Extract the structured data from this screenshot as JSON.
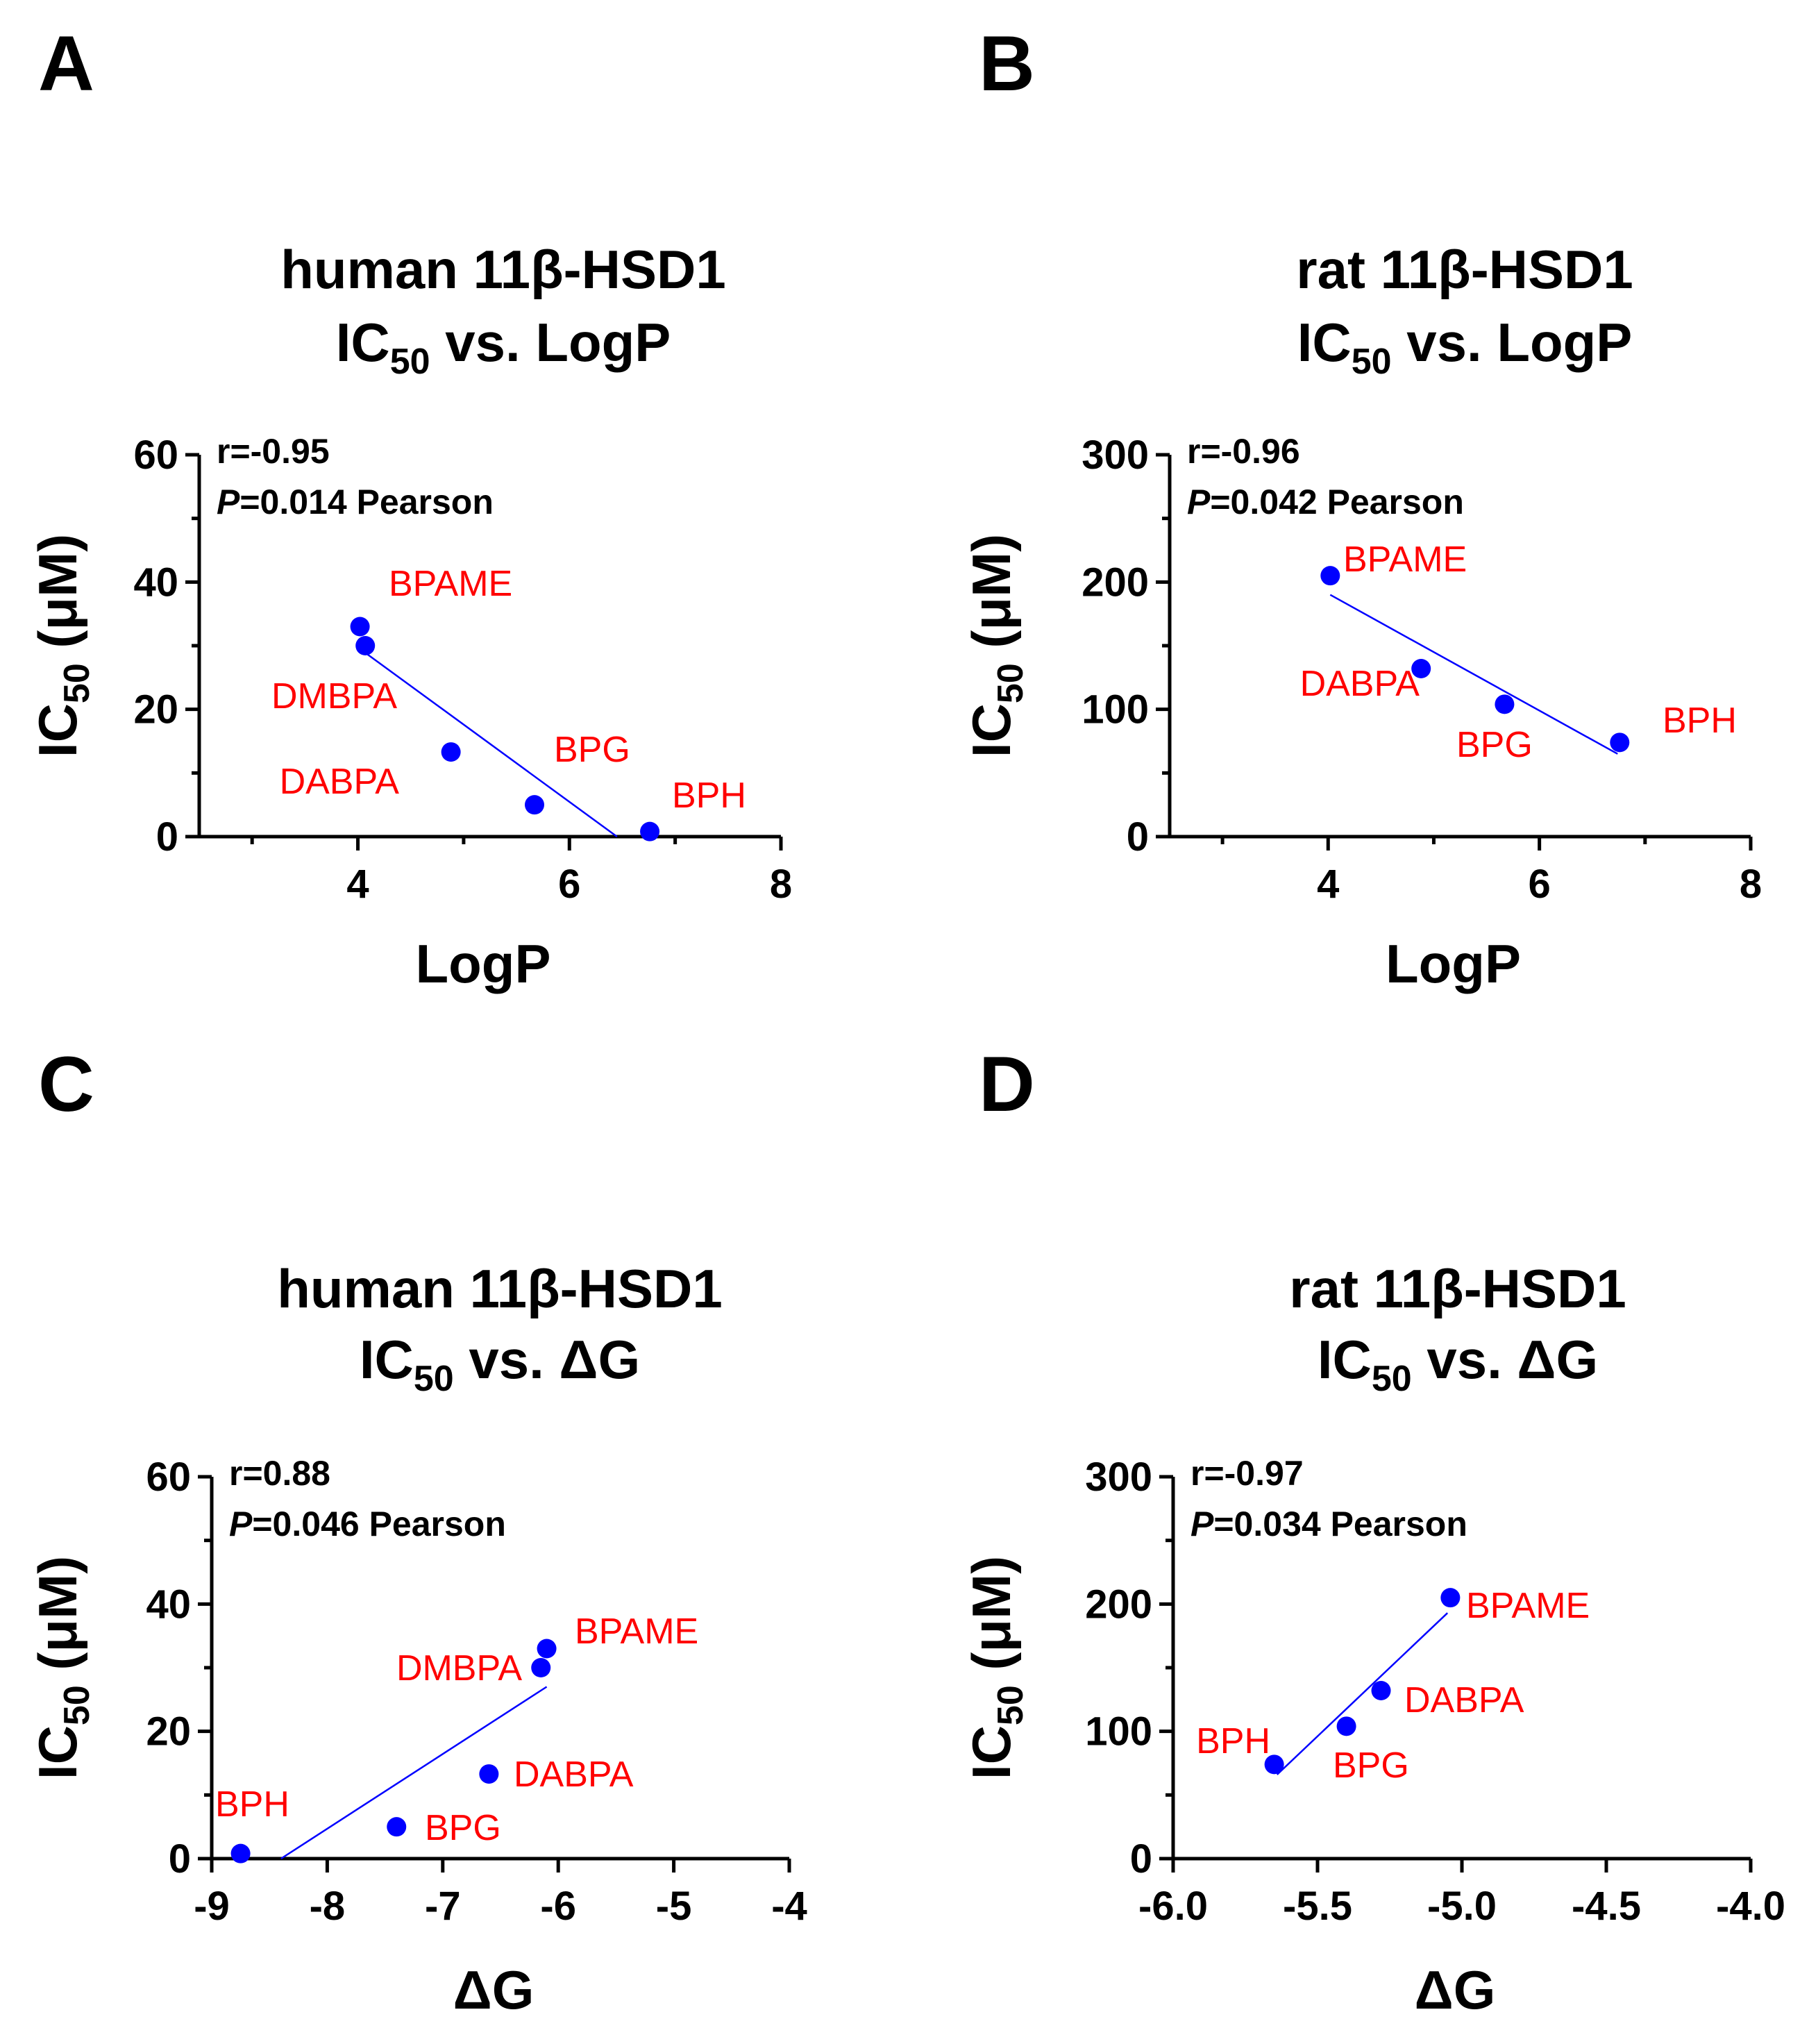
{
  "chart_data": [
    {
      "panel": "A",
      "type": "scatter",
      "title_line1": "human 11β-HSD1",
      "title_ic": "IC",
      "title_sub": "50",
      "title_rest": " vs. LogP",
      "xlabel": "LogP",
      "ylabel_prefix": "IC",
      "ylabel_sub": "50",
      "ylabel_suffix": " (μM)",
      "xlim": [
        2.5,
        8
      ],
      "ylim": [
        0,
        60
      ],
      "xticks": [
        4,
        6,
        8
      ],
      "xminor": [
        3,
        5,
        7
      ],
      "yticks": [
        0,
        20,
        40,
        60
      ],
      "yminor": [
        10,
        30,
        50
      ],
      "stat_r": "r=-0.95",
      "stat_p_italic": "P",
      "stat_p_rest": "=0.014 Pearson",
      "points": [
        {
          "name": "BPAME",
          "x": 4.02,
          "y": 33
        },
        {
          "name": "DMBPA",
          "x": 4.07,
          "y": 30
        },
        {
          "name": "DABPA",
          "x": 4.88,
          "y": 13.3
        },
        {
          "name": "BPG",
          "x": 5.67,
          "y": 5
        },
        {
          "name": "BPH",
          "x": 6.76,
          "y": 0.8
        }
      ],
      "fit": {
        "x1": 4.02,
        "y1": 29.5,
        "x2": 6.45,
        "y2": 0
      }
    },
    {
      "panel": "B",
      "type": "scatter",
      "title_line1": "rat 11β-HSD1",
      "title_ic": "IC",
      "title_sub": "50",
      "title_rest": " vs. LogP",
      "xlabel": "LogP",
      "ylabel_prefix": "IC",
      "ylabel_sub": "50",
      "ylabel_suffix": " (μM)",
      "xlim": [
        2.5,
        8
      ],
      "ylim": [
        0,
        300
      ],
      "xticks": [
        4,
        6,
        8
      ],
      "xminor": [
        3,
        5,
        7
      ],
      "yticks": [
        0,
        100,
        200,
        300
      ],
      "yminor": [
        50,
        150,
        250
      ],
      "stat_r": "r=-0.96",
      "stat_p_italic": "P",
      "stat_p_rest": "=0.042 Pearson",
      "points": [
        {
          "name": "BPAME",
          "x": 4.02,
          "y": 205
        },
        {
          "name": "DABPA",
          "x": 4.88,
          "y": 132
        },
        {
          "name": "BPG",
          "x": 5.67,
          "y": 104
        },
        {
          "name": "BPH",
          "x": 6.76,
          "y": 74
        }
      ],
      "fit": {
        "x1": 4.02,
        "y1": 190,
        "x2": 6.74,
        "y2": 65
      }
    },
    {
      "panel": "C",
      "type": "scatter",
      "title_line1": "human 11β-HSD1",
      "title_ic": "IC",
      "title_sub": "50",
      "title_rest": " vs. ΔG",
      "xlabel": "ΔG",
      "ylabel_prefix": "IC",
      "ylabel_sub": "50",
      "ylabel_suffix": " (μM)",
      "xlim": [
        -9,
        -4
      ],
      "ylim": [
        0,
        60
      ],
      "xticks": [
        -9,
        -8,
        -7,
        -6,
        -5,
        -4
      ],
      "xminor": [],
      "yticks": [
        0,
        20,
        40,
        60
      ],
      "yminor": [
        10,
        30,
        50
      ],
      "stat_r": "r=0.88",
      "stat_p_italic": "P",
      "stat_p_rest": "=0.046 Pearson",
      "points": [
        {
          "name": "BPAME",
          "x": -6.1,
          "y": 33
        },
        {
          "name": "DMBPA",
          "x": -6.15,
          "y": 30
        },
        {
          "name": "DABPA",
          "x": -6.6,
          "y": 13.3
        },
        {
          "name": "BPG",
          "x": -7.4,
          "y": 5
        },
        {
          "name": "BPH",
          "x": -8.75,
          "y": 0.8
        }
      ],
      "fit": {
        "x1": -8.4,
        "y1": 0,
        "x2": -6.1,
        "y2": 27
      }
    },
    {
      "panel": "D",
      "type": "scatter",
      "title_line1": "rat 11β-HSD1",
      "title_ic": "IC",
      "title_sub": "50",
      "title_rest": " vs. ΔG",
      "xlabel": "ΔG",
      "ylabel_prefix": "IC",
      "ylabel_sub": "50",
      "ylabel_suffix": " (μM)",
      "xlim": [
        -6,
        -4
      ],
      "ylim": [
        0,
        300
      ],
      "xticks": [
        -6.0,
        -5.5,
        -5.0,
        -4.5,
        -4.0
      ],
      "xtick_labels": [
        "-6.0",
        "-5.5",
        "-5.0",
        "-4.5",
        "-4.0"
      ],
      "xminor": [],
      "yticks": [
        0,
        100,
        200,
        300
      ],
      "yminor": [
        50,
        150,
        250
      ],
      "stat_r": "r=-0.97",
      "stat_p_italic": "P",
      "stat_p_rest": "=0.034 Pearson",
      "points": [
        {
          "name": "BPAME",
          "x": -5.04,
          "y": 205
        },
        {
          "name": "DABPA",
          "x": -5.28,
          "y": 132
        },
        {
          "name": "BPG",
          "x": -5.4,
          "y": 104
        },
        {
          "name": "BPH",
          "x": -5.65,
          "y": 74
        }
      ],
      "fit": {
        "x1": -5.64,
        "y1": 66,
        "x2": -5.05,
        "y2": 193
      }
    }
  ]
}
